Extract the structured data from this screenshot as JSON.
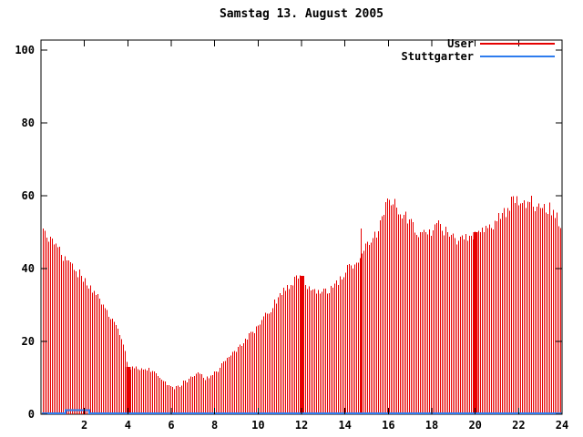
{
  "title": "Samstag 13. August 2005",
  "legend": [
    {
      "label": "User",
      "color": "#e60000"
    },
    {
      "label": "Stuttgarter",
      "color": "#2e7cee"
    }
  ],
  "chart_data": {
    "type": "bar",
    "subtype": "impulses-time-series",
    "title": "Samstag 13. August 2005",
    "xlabel": "",
    "ylabel": "",
    "xlim": [
      0,
      24
    ],
    "ylim": [
      0,
      100
    ],
    "x_ticks": [
      2,
      4,
      6,
      8,
      10,
      12,
      14,
      16,
      18,
      20,
      22,
      24
    ],
    "y_ticks": [
      0,
      20,
      40,
      60,
      80,
      100
    ],
    "grid": false,
    "legend_position": "top-right",
    "series": [
      {
        "name": "User",
        "style": "impulses",
        "color": "#e60000",
        "envelope_start_hour": 0,
        "envelope_step_hours": 0.25,
        "envelope_y": [
          51,
          48.5,
          47,
          45.5,
          43.5,
          41.5,
          40,
          38.5,
          36.5,
          35,
          33,
          31,
          28.5,
          26.5,
          24,
          20,
          13,
          12.5,
          12.5,
          13,
          12.5,
          11,
          9.5,
          8.5,
          7.5,
          7.2,
          8.5,
          9.5,
          10.5,
          11.2,
          9.8,
          10.2,
          11.5,
          13,
          15,
          16.5,
          18,
          19.5,
          21.5,
          22.5,
          24.5,
          26.5,
          28.5,
          30.5,
          33,
          34.5,
          35.5,
          37,
          38,
          35,
          34,
          34.5,
          34,
          33.5,
          35,
          37,
          39,
          40.5,
          42,
          44,
          46.5,
          47.5,
          50,
          55,
          59,
          57.5,
          56,
          54.5,
          52.5,
          50.5,
          49.5,
          50,
          50.5,
          52.5,
          51,
          49.5,
          48.5,
          47.5,
          48.5,
          49,
          50,
          50.5,
          51.5,
          52,
          53.5,
          54.5,
          56.5,
          60,
          58.5,
          58,
          59.5,
          57.5,
          56,
          57,
          56,
          54,
          50
        ],
        "solid_blocks": [
          {
            "x": 4,
            "y": 13
          },
          {
            "x": 12,
            "y": 38
          },
          {
            "x": 20,
            "y": 50
          }
        ],
        "spikes": [
          {
            "x": 14.72,
            "y": 51
          }
        ]
      },
      {
        "name": "Stuttgarter",
        "style": "line",
        "color": "#2e7cee",
        "points": [
          [
            0.05,
            0.3
          ],
          [
            1.13,
            0.3
          ],
          [
            1.13,
            1.1
          ],
          [
            2.22,
            1.1
          ],
          [
            2.22,
            0.3
          ],
          [
            23.98,
            0.3
          ]
        ]
      }
    ]
  }
}
